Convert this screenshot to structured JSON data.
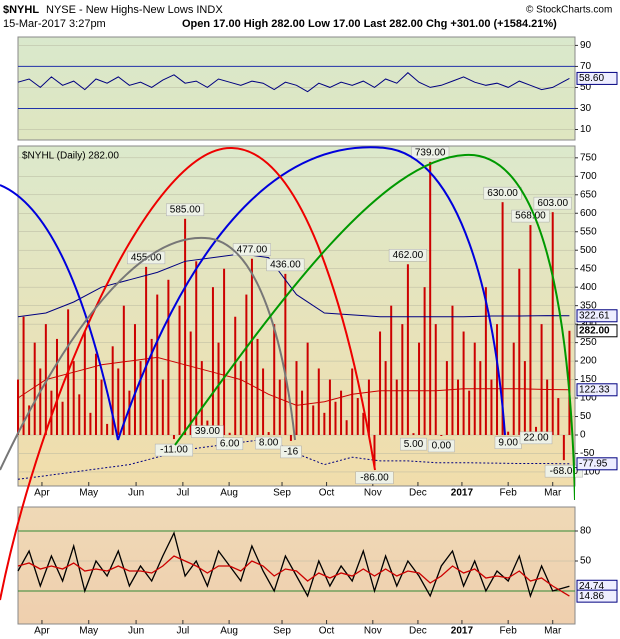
{
  "chart_data": {
    "type": "bar",
    "symbol": "$NYHL",
    "title": "NYSE - New Highs-New Lows INDX",
    "date": "15-Mar-2017 3:27pm",
    "quote": "Open 17.00  High 282.00  Low 17.00  Last 282.00  Chg +301.00 (+1584.21%)",
    "credit": "© StockCharts.com",
    "legend": "$NYHL (Daily) 282.00",
    "xlim": [
      0,
      100
    ],
    "xticks": [
      {
        "value": 4.3,
        "label": "Apr"
      },
      {
        "value": 12.7,
        "label": "May"
      },
      {
        "value": 21.2,
        "label": "Jun"
      },
      {
        "value": 29.6,
        "label": "Jul"
      },
      {
        "value": 37.9,
        "label": "Aug"
      },
      {
        "value": 47.4,
        "label": "Sep"
      },
      {
        "value": 55.4,
        "label": "Oct"
      },
      {
        "value": 63.7,
        "label": "Nov"
      },
      {
        "value": 71.8,
        "label": "Dec"
      },
      {
        "value": 79.7,
        "label": "2017"
      },
      {
        "value": 88,
        "label": "Feb"
      },
      {
        "value": 96,
        "label": "Mar"
      }
    ],
    "top": {
      "ylim": [
        0,
        98
      ],
      "yticks": [
        10,
        30,
        50,
        70,
        90
      ],
      "hlines": [
        30,
        70
      ],
      "color": "#000080",
      "x": [
        0,
        2,
        4,
        6,
        8,
        10,
        12,
        14,
        16,
        18,
        20,
        22,
        24,
        26,
        28,
        30,
        32,
        34,
        36,
        38,
        40,
        42,
        44,
        46,
        48,
        50,
        52,
        54,
        56,
        58,
        60,
        62,
        64,
        66,
        68,
        70,
        72,
        74,
        76,
        78,
        80,
        82,
        84,
        86,
        88,
        90,
        92,
        94,
        96,
        99
      ],
      "values": [
        55,
        58,
        50,
        60,
        52,
        56,
        48,
        58,
        54,
        60,
        52,
        55,
        50,
        57,
        62,
        54,
        56,
        50,
        58,
        55,
        52,
        56,
        54,
        48,
        55,
        52,
        46,
        54,
        50,
        55,
        52,
        56,
        50,
        58,
        54,
        64,
        55,
        50,
        52,
        56,
        60,
        55,
        52,
        54,
        50,
        56,
        52,
        48,
        50,
        58.6
      ],
      "value_label": "58.60"
    },
    "main": {
      "ylim": [
        -138,
        782
      ],
      "yticks": [
        -100,
        -50,
        0,
        50,
        100,
        150,
        200,
        250,
        300,
        350,
        400,
        450,
        500,
        550,
        600,
        650,
        700,
        750
      ],
      "color": "#cc0000",
      "grid": true,
      "values": [
        150,
        320,
        80,
        250,
        180,
        300,
        120,
        260,
        90,
        340,
        200,
        110,
        280,
        60,
        220,
        150,
        30,
        240,
        180,
        350,
        120,
        300,
        200,
        455,
        260,
        380,
        150,
        420,
        -11,
        350,
        585,
        280,
        470,
        200,
        39,
        400,
        250,
        450,
        6,
        320,
        200,
        380,
        477,
        260,
        180,
        8,
        300,
        150,
        436,
        -16,
        200,
        120,
        250,
        80,
        180,
        60,
        150,
        90,
        120,
        40,
        180,
        100,
        60,
        150,
        -86,
        280,
        200,
        350,
        150,
        300,
        462,
        5,
        250,
        400,
        739,
        300,
        0,
        200,
        350,
        150,
        280,
        120,
        250,
        200,
        400,
        150,
        300,
        630,
        9,
        250,
        450,
        200,
        568,
        22,
        300,
        150,
        603,
        100,
        -68,
        282
      ],
      "value_labels": [
        null,
        null,
        null,
        null,
        null,
        null,
        null,
        null,
        null,
        null,
        null,
        null,
        null,
        null,
        null,
        null,
        null,
        null,
        null,
        null,
        null,
        null,
        null,
        "455.00",
        null,
        null,
        null,
        null,
        "-11.00",
        null,
        "585.00",
        null,
        null,
        null,
        "39.00",
        null,
        null,
        null,
        "6.00",
        null,
        null,
        null,
        "477.00",
        null,
        null,
        "8.00",
        null,
        null,
        "436.00",
        "-16",
        null,
        null,
        null,
        null,
        null,
        null,
        null,
        null,
        null,
        null,
        null,
        null,
        null,
        null,
        "-86.00",
        null,
        null,
        null,
        null,
        null,
        "462.00",
        "5.00",
        null,
        null,
        "739.00",
        null,
        "0.00",
        null,
        null,
        null,
        null,
        null,
        null,
        null,
        null,
        null,
        null,
        "630.00",
        "9.00",
        null,
        null,
        null,
        "568.00",
        "22.00",
        null,
        null,
        "603.00",
        null,
        "-68.00",
        "282.00"
      ],
      "overlays": {
        "x": [
          0,
          5,
          10,
          15,
          20,
          25,
          30,
          35,
          40,
          45,
          50,
          55,
          60,
          65,
          70,
          75,
          80,
          85,
          90,
          95,
          99
        ],
        "series": [
          {
            "color": "#000080",
            "style": "solid",
            "values": [
              320,
              330,
              360,
              400,
              420,
              440,
              470,
              480,
              490,
              480,
              380,
              330,
              325,
              320,
              320,
              320,
              320,
              322,
              322,
              323,
              322.61
            ],
            "value_label": "322.61"
          },
          {
            "color": "#cc0000",
            "style": "solid",
            "values": [
              100,
              150,
              170,
              190,
              200,
              210,
              190,
              170,
              150,
              110,
              80,
              90,
              110,
              120,
              120,
              120,
              125,
              125,
              125,
              123,
              122.33
            ],
            "value_label": "122.33"
          },
          {
            "color": "#000080",
            "style": "dotted",
            "values": [
              -120,
              -110,
              -100,
              -90,
              -80,
              -60,
              -40,
              -30,
              -20,
              -10,
              -50,
              -80,
              -60,
              -70,
              -70,
              -75,
              -75,
              -76,
              -77,
              -77,
              -77.95
            ],
            "value_label": "-77.95"
          }
        ]
      }
    },
    "bottom": {
      "ylim": [
        -13,
        104
      ],
      "yticks": [
        50,
        80
      ],
      "hlines": [
        20,
        80
      ],
      "x": [
        0,
        2,
        4,
        6,
        8,
        10,
        12,
        14,
        16,
        18,
        20,
        22,
        24,
        26,
        28,
        30,
        32,
        34,
        36,
        38,
        40,
        42,
        44,
        46,
        48,
        50,
        52,
        54,
        56,
        58,
        60,
        62,
        64,
        66,
        68,
        70,
        72,
        74,
        76,
        78,
        80,
        82,
        84,
        86,
        88,
        90,
        92,
        94,
        96,
        99
      ],
      "series": [
        {
          "color": "#000000",
          "values": [
            40,
            60,
            25,
            55,
            30,
            65,
            20,
            50,
            35,
            60,
            25,
            45,
            30,
            55,
            78,
            35,
            50,
            25,
            60,
            45,
            30,
            65,
            40,
            20,
            55,
            35,
            15,
            50,
            25,
            45,
            30,
            60,
            20,
            55,
            25,
            50,
            35,
            15,
            45,
            60,
            25,
            50,
            20,
            40,
            30,
            55,
            15,
            45,
            20,
            24.74
          ],
          "value_label": "24.74"
        },
        {
          "color": "#cc0000",
          "values": [
            45,
            48,
            42,
            45,
            42,
            48,
            40,
            42,
            40,
            45,
            40,
            40,
            38,
            45,
            55,
            50,
            45,
            38,
            45,
            45,
            40,
            50,
            45,
            35,
            42,
            40,
            30,
            38,
            33,
            38,
            35,
            42,
            35,
            42,
            35,
            40,
            38,
            28,
            35,
            45,
            38,
            42,
            33,
            35,
            33,
            40,
            30,
            33,
            25,
            14.86
          ],
          "value_label": "14.86"
        }
      ]
    }
  }
}
